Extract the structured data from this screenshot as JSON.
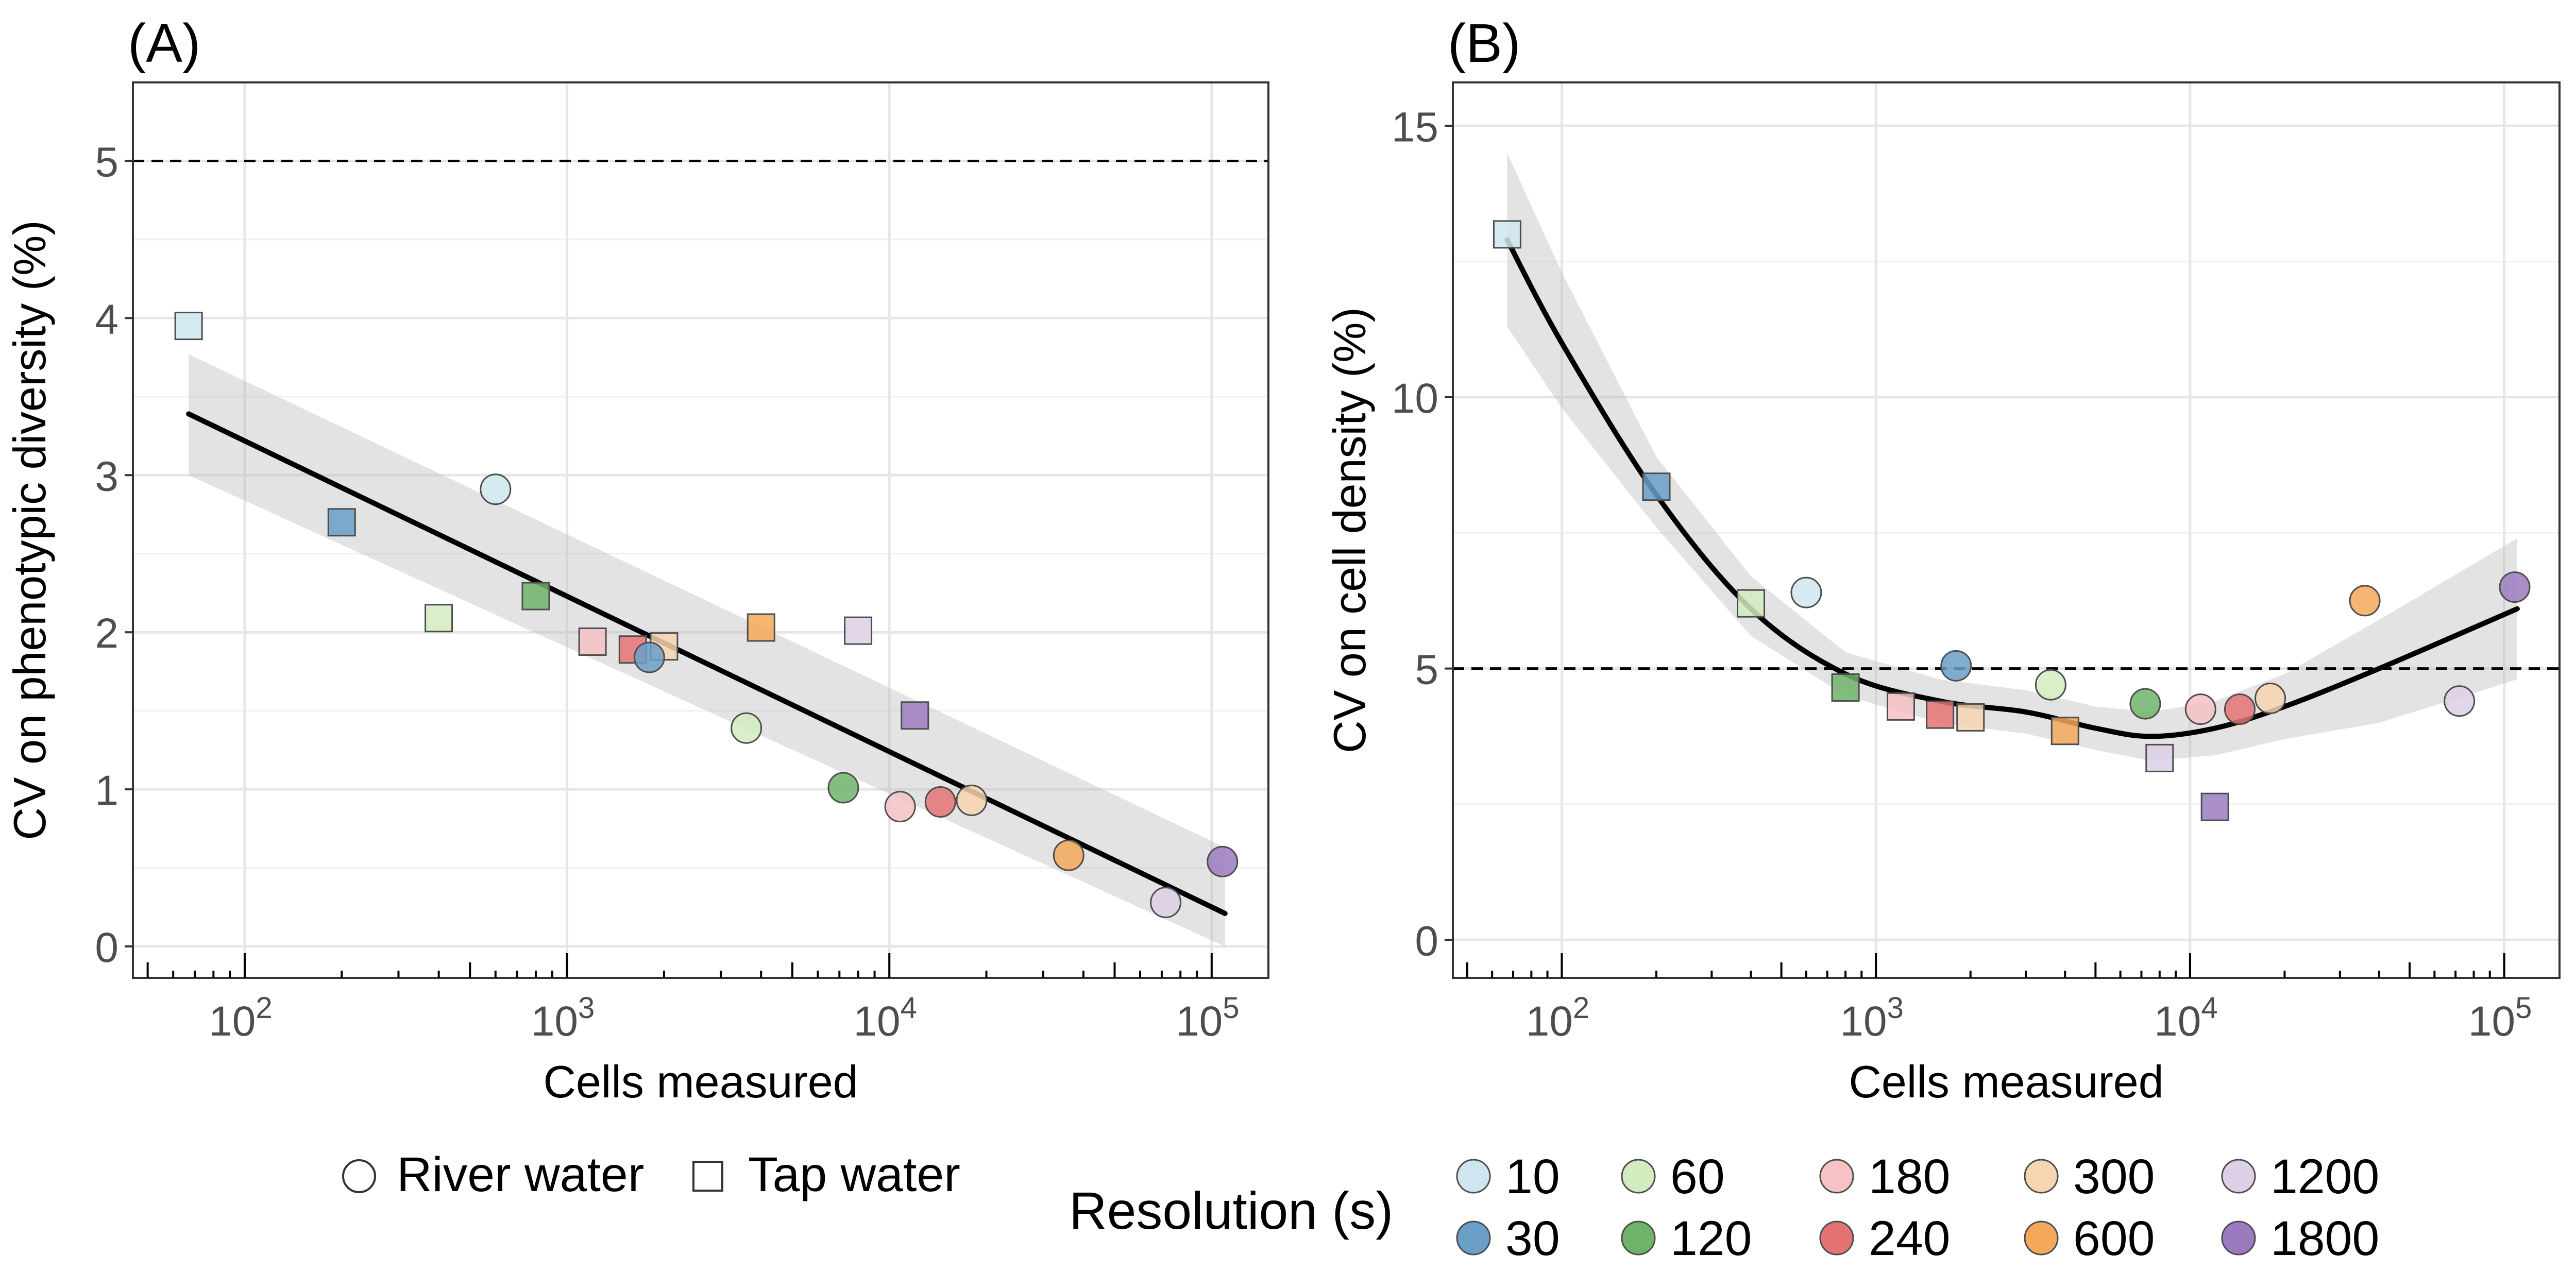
{
  "panels": [
    {
      "tag": "(A)",
      "ylabel": "CV on phenotypic diversity (%)",
      "xlabel": "Cells measured",
      "y_ticks": [
        "0",
        "1",
        "2",
        "3",
        "4",
        "5"
      ]
    },
    {
      "tag": "(B)",
      "ylabel": "CV on cell density (%)",
      "xlabel": "Cells measured",
      "y_ticks": [
        "0",
        "5",
        "10",
        "15"
      ]
    }
  ],
  "x_ticks": [
    {
      "base": "10",
      "exp": "2"
    },
    {
      "base": "10",
      "exp": "3"
    },
    {
      "base": "10",
      "exp": "4"
    },
    {
      "base": "10",
      "exp": "5"
    }
  ],
  "legend": {
    "shape_items": [
      "River water",
      "Tap water"
    ],
    "resolution_title": "Resolution (s)",
    "resolution_items": [
      {
        "label": "10",
        "color": "#cfe6f0"
      },
      {
        "label": "30",
        "color": "#6a9fc7"
      },
      {
        "label": "60",
        "color": "#d2ecbf"
      },
      {
        "label": "120",
        "color": "#6fb36b"
      },
      {
        "label": "180",
        "color": "#f6c2c4"
      },
      {
        "label": "240",
        "color": "#e47374"
      },
      {
        "label": "300",
        "color": "#f6d5b0"
      },
      {
        "label": "600",
        "color": "#f3a85a"
      },
      {
        "label": "1200",
        "color": "#ddd0e6"
      },
      {
        "label": "1800",
        "color": "#9b7bbf"
      }
    ]
  },
  "chart_data": [
    {
      "type": "scatter",
      "panel": "(A)",
      "xlabel": "Cells measured",
      "ylabel": "CV on phenotypic diversity (%)",
      "x_scale": "log10",
      "xlim": [
        45,
        150000
      ],
      "ylim": [
        -0.2,
        5.5
      ],
      "reference_line": {
        "y": 5,
        "style": "dashed"
      },
      "trend": {
        "type": "linear fit",
        "x": [
          67,
          110000
        ],
        "y": [
          3.39,
          0.21
        ],
        "ci_low": [
          3.0,
          0.0
        ],
        "ci_high": [
          3.77,
          0.63
        ]
      },
      "points": [
        {
          "x": 67,
          "y": 3.95,
          "resolution": "10",
          "sample": "Tap water"
        },
        {
          "x": 200,
          "y": 2.7,
          "resolution": "30",
          "sample": "Tap water"
        },
        {
          "x": 400,
          "y": 2.09,
          "resolution": "60",
          "sample": "Tap water"
        },
        {
          "x": 800,
          "y": 2.23,
          "resolution": "120",
          "sample": "Tap water"
        },
        {
          "x": 1200,
          "y": 1.94,
          "resolution": "180",
          "sample": "Tap water"
        },
        {
          "x": 1600,
          "y": 1.89,
          "resolution": "240",
          "sample": "Tap water"
        },
        {
          "x": 2000,
          "y": 1.91,
          "resolution": "300",
          "sample": "Tap water"
        },
        {
          "x": 4000,
          "y": 2.03,
          "resolution": "600",
          "sample": "Tap water"
        },
        {
          "x": 8000,
          "y": 2.01,
          "resolution": "1200",
          "sample": "Tap water"
        },
        {
          "x": 12000,
          "y": 1.47,
          "resolution": "1800",
          "sample": "Tap water"
        },
        {
          "x": 600,
          "y": 2.91,
          "resolution": "10",
          "sample": "River water"
        },
        {
          "x": 1800,
          "y": 1.84,
          "resolution": "30",
          "sample": "River water"
        },
        {
          "x": 3600,
          "y": 1.39,
          "resolution": "60",
          "sample": "River water"
        },
        {
          "x": 7200,
          "y": 1.01,
          "resolution": "120",
          "sample": "River water"
        },
        {
          "x": 10800,
          "y": 0.89,
          "resolution": "180",
          "sample": "River water"
        },
        {
          "x": 14400,
          "y": 0.92,
          "resolution": "240",
          "sample": "River water"
        },
        {
          "x": 18000,
          "y": 0.93,
          "resolution": "300",
          "sample": "River water"
        },
        {
          "x": 36000,
          "y": 0.58,
          "resolution": "600",
          "sample": "River water"
        },
        {
          "x": 72000,
          "y": 0.28,
          "resolution": "1200",
          "sample": "River water"
        },
        {
          "x": 108000,
          "y": 0.54,
          "resolution": "1800",
          "sample": "River water"
        }
      ]
    },
    {
      "type": "scatter",
      "panel": "(B)",
      "xlabel": "Cells measured",
      "ylabel": "CV on cell density (%)",
      "x_scale": "log10",
      "xlim": [
        45,
        150000
      ],
      "ylim": [
        -0.7,
        15.8
      ],
      "reference_line": {
        "y": 5,
        "style": "dashed"
      },
      "trend": {
        "type": "smooth fit",
        "x": [
          67,
          100,
          200,
          400,
          800,
          1600,
          3000,
          5000,
          7500,
          12000,
          20000,
          40000,
          110000
        ],
        "y": [
          12.9,
          11.0,
          8.2,
          6.1,
          4.9,
          4.4,
          4.2,
          3.9,
          3.75,
          3.9,
          4.3,
          5.0,
          6.1
        ],
        "ci_low": [
          11.3,
          9.8,
          7.6,
          5.6,
          4.5,
          4.0,
          3.8,
          3.5,
          3.3,
          3.4,
          3.7,
          4.0,
          4.8
        ],
        "ci_high": [
          14.5,
          12.3,
          8.9,
          6.7,
          5.3,
          4.8,
          4.6,
          4.3,
          4.2,
          4.4,
          4.9,
          5.9,
          7.4
        ]
      },
      "points": [
        {
          "x": 67,
          "y": 13.0,
          "resolution": "10",
          "sample": "Tap water"
        },
        {
          "x": 200,
          "y": 8.35,
          "resolution": "30",
          "sample": "Tap water"
        },
        {
          "x": 400,
          "y": 6.2,
          "resolution": "60",
          "sample": "Tap water"
        },
        {
          "x": 800,
          "y": 4.65,
          "resolution": "120",
          "sample": "Tap water"
        },
        {
          "x": 1200,
          "y": 4.3,
          "resolution": "180",
          "sample": "Tap water"
        },
        {
          "x": 1600,
          "y": 4.15,
          "resolution": "240",
          "sample": "Tap water"
        },
        {
          "x": 2000,
          "y": 4.1,
          "resolution": "300",
          "sample": "Tap water"
        },
        {
          "x": 4000,
          "y": 3.85,
          "resolution": "600",
          "sample": "Tap water"
        },
        {
          "x": 8000,
          "y": 3.35,
          "resolution": "1200",
          "sample": "Tap water"
        },
        {
          "x": 12000,
          "y": 2.45,
          "resolution": "1800",
          "sample": "Tap water"
        },
        {
          "x": 600,
          "y": 6.4,
          "resolution": "10",
          "sample": "River water"
        },
        {
          "x": 1800,
          "y": 5.05,
          "resolution": "30",
          "sample": "River water"
        },
        {
          "x": 3600,
          "y": 4.7,
          "resolution": "60",
          "sample": "River water"
        },
        {
          "x": 7200,
          "y": 4.35,
          "resolution": "120",
          "sample": "River water"
        },
        {
          "x": 10800,
          "y": 4.25,
          "resolution": "180",
          "sample": "River water"
        },
        {
          "x": 14400,
          "y": 4.25,
          "resolution": "240",
          "sample": "River water"
        },
        {
          "x": 18000,
          "y": 4.45,
          "resolution": "300",
          "sample": "River water"
        },
        {
          "x": 36000,
          "y": 6.25,
          "resolution": "600",
          "sample": "River water"
        },
        {
          "x": 72000,
          "y": 4.4,
          "resolution": "1200",
          "sample": "River water"
        },
        {
          "x": 108000,
          "y": 6.5,
          "resolution": "1800",
          "sample": "River water"
        }
      ]
    }
  ]
}
